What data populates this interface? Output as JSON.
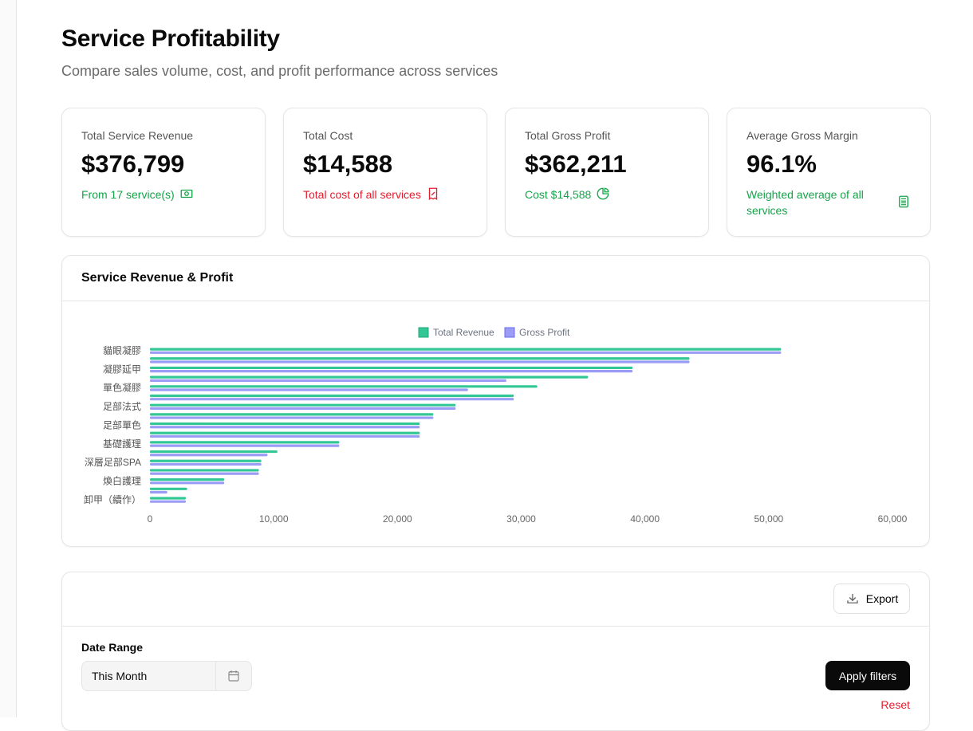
{
  "page": {
    "title": "Service Profitability",
    "subtitle": "Compare sales volume, cost, and profit performance across services"
  },
  "stats": [
    {
      "label": "Total Service Revenue",
      "value": "$376,799",
      "note": "From 17 service(s)",
      "icon": "money-icon",
      "tone": "green"
    },
    {
      "label": "Total Cost",
      "value": "$14,588",
      "note": "Total cost of all services",
      "icon": "receipt-percent-icon",
      "tone": "red"
    },
    {
      "label": "Total Gross Profit",
      "value": "$362,211",
      "note": "Cost $14,588",
      "icon": "pie-chart-icon",
      "tone": "green"
    },
    {
      "label": "Average Gross Margin",
      "value": "96.1%",
      "note": "Weighted average of all services",
      "icon": "calculator-icon",
      "tone": "green"
    }
  ],
  "chart_card": {
    "title": "Service Revenue & Profit"
  },
  "chart_data": {
    "type": "bar",
    "orientation": "horizontal",
    "categories": [
      "貓眼凝膠",
      "",
      "凝膠延甲",
      "",
      "單色凝膠",
      "",
      "足部法式",
      "",
      "足部單色",
      "",
      "基礎護理",
      "",
      "深層足部SPA",
      "",
      "煥白護理",
      "",
      "卸甲（續作）"
    ],
    "series": [
      {
        "name": "Total Revenue",
        "color": "#34c796",
        "values": [
          51000,
          43600,
          39000,
          35400,
          31300,
          29400,
          24700,
          22900,
          21800,
          21800,
          15300,
          10300,
          9000,
          8800,
          6000,
          3000,
          2900
        ]
      },
      {
        "name": "Gross Profit",
        "color": "#9b9cf5",
        "values": [
          51000,
          43600,
          39000,
          28800,
          25700,
          29400,
          24700,
          22900,
          21800,
          21800,
          15300,
          9500,
          9000,
          8800,
          6000,
          1400,
          2900
        ]
      }
    ],
    "xlim": [
      0,
      60000
    ],
    "xticks": [
      "0",
      "10,000",
      "20,000",
      "30,000",
      "40,000",
      "50,000",
      "60,000"
    ],
    "legend": "top-center",
    "grid": false
  },
  "filters": {
    "export_label": "Export",
    "date_range_label": "Date Range",
    "date_value": "This Month",
    "apply_label": "Apply filters",
    "reset_label": "Reset"
  }
}
